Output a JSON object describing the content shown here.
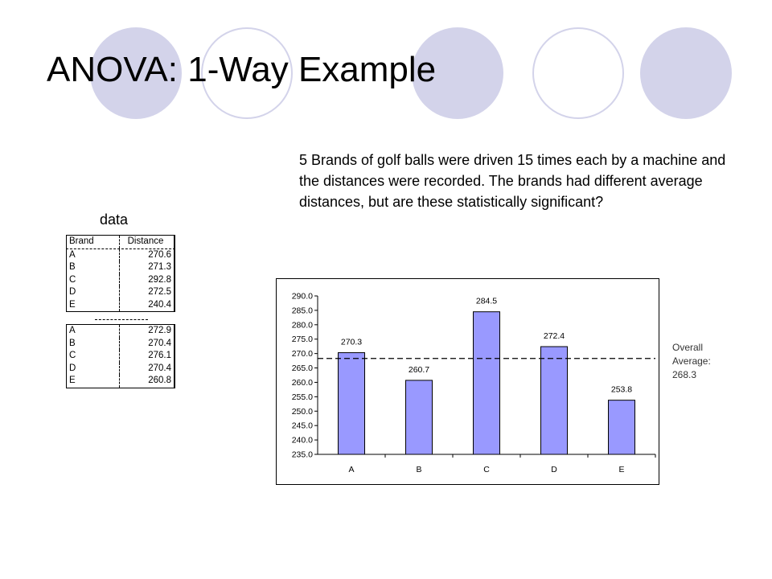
{
  "slide": {
    "title": "ANOVA: 1-Way Example",
    "description": "5 Brands of golf balls were driven 15 times each by a machine and the distances were recorded. The brands had different average distances, but are these statistically significant?",
    "data_label": "data",
    "overall_label": "Overall",
    "average_label": "Average:",
    "average_value": "268.3",
    "accent_color": "#d3d3ea"
  },
  "table": {
    "headers": [
      "Brand",
      "Distance"
    ],
    "rows_block1": [
      [
        "A",
        "270.6"
      ],
      [
        "B",
        "271.3"
      ],
      [
        "C",
        "292.8"
      ],
      [
        "D",
        "272.5"
      ],
      [
        "E",
        "240.4"
      ]
    ],
    "rows_block2": [
      [
        "A",
        "272.9"
      ],
      [
        "B",
        "270.4"
      ],
      [
        "C",
        "276.1"
      ],
      [
        "D",
        "270.4"
      ],
      [
        "E",
        "260.8"
      ]
    ]
  },
  "chart_data": {
    "type": "bar",
    "categories": [
      "A",
      "B",
      "C",
      "D",
      "E"
    ],
    "values": [
      270.3,
      260.7,
      284.5,
      272.4,
      253.8
    ],
    "value_labels": [
      "270.3",
      "260.7",
      "284.5",
      "272.4",
      "253.8"
    ],
    "title": "",
    "xlabel": "",
    "ylabel": "",
    "ylim": [
      235.0,
      290.0
    ],
    "ytick_step": 5,
    "yticks": [
      "235.0",
      "240.0",
      "245.0",
      "250.0",
      "255.0",
      "260.0",
      "265.0",
      "270.0",
      "275.0",
      "280.0",
      "285.0",
      "290.0"
    ],
    "reference_line": 268.3,
    "bar_color": "#9999ff",
    "grid": false,
    "legend": "none"
  }
}
